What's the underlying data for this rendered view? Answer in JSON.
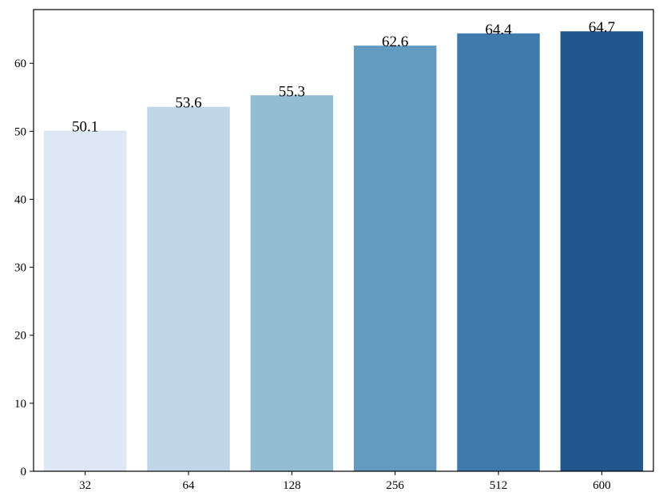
{
  "chart_data": {
    "type": "bar",
    "title": "",
    "xlabel": "",
    "ylabel": "",
    "categories": [
      "32",
      "64",
      "128",
      "256",
      "512",
      "600"
    ],
    "values": [
      50.1,
      53.6,
      55.3,
      62.6,
      64.4,
      64.7
    ],
    "data_labels": [
      "50.1",
      "53.6",
      "55.3",
      "62.6",
      "64.4",
      "64.7"
    ],
    "colors": [
      "#dee8f4",
      "#c0d5e7",
      "#94bcd3",
      "#629ac0",
      "#3e7aab",
      "#21558d"
    ],
    "ylim": [
      0,
      67.9
    ],
    "yticks": [
      0,
      10,
      20,
      30,
      40,
      50,
      60
    ],
    "ytick_labels": [
      "0",
      "10",
      "20",
      "30",
      "40",
      "50",
      "60"
    ],
    "grid": false,
    "legend": "none"
  }
}
